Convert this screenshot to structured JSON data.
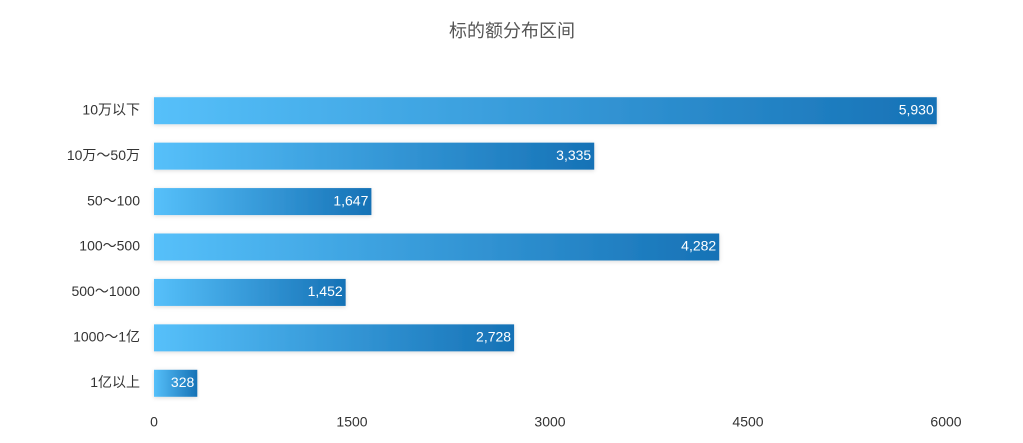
{
  "chart_data": {
    "type": "bar",
    "orientation": "horizontal",
    "title": "标的额分布区间",
    "categories": [
      "10万以下",
      "10万～50万",
      "50～100",
      "100～500",
      "500～1000",
      "1000～1亿",
      "1亿以上"
    ],
    "values": [
      5930,
      3335,
      1647,
      4282,
      1452,
      2728,
      328
    ],
    "value_labels": [
      "5,930",
      "3,335",
      "1,647",
      "4,282",
      "1,452",
      "2,728",
      "328"
    ],
    "color": [
      "#56c0fa",
      "#1672b6"
    ],
    "xlim": [
      0,
      6000
    ],
    "xticks": [
      0,
      1500,
      3000,
      4500,
      6000
    ],
    "grid": false
  }
}
